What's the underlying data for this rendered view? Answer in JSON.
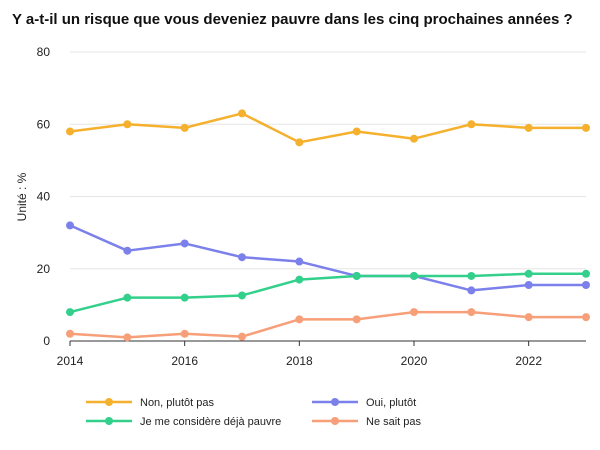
{
  "chart_data": {
    "type": "line",
    "title": "Y a-t-il un risque que vous deveniez pauvre dans les cinq prochaines années ?",
    "ylabel": "Unité : %",
    "xlabel": "",
    "x": [
      2014,
      2015,
      2016,
      2017,
      2018,
      2019,
      2020,
      2021,
      2022,
      2023
    ],
    "x_ticks": [
      2014,
      2016,
      2018,
      2020,
      2022
    ],
    "xlim": [
      2014,
      2023
    ],
    "ylim": [
      0,
      80
    ],
    "y_ticks": [
      0,
      20,
      40,
      60,
      80
    ],
    "grid": true,
    "legend_position": "bottom",
    "series": [
      {
        "name": "Non, plutôt pas",
        "color": "#f5b02e",
        "values": [
          58,
          60,
          59,
          63,
          55,
          58,
          56,
          60,
          59,
          59
        ]
      },
      {
        "name": "Oui, plutôt",
        "color": "#7b80ea",
        "values": [
          32,
          25,
          27,
          23.2,
          22,
          18,
          18,
          14,
          15.5,
          15.5
        ]
      },
      {
        "name": "Je me considère déjà pauvre",
        "color": "#33d08c",
        "values": [
          8,
          12,
          12,
          12.6,
          17,
          18,
          18,
          18,
          18.6,
          18.6
        ]
      },
      {
        "name": "Ne sait pas",
        "color": "#f79f78",
        "values": [
          2,
          1,
          2,
          1.2,
          6,
          6,
          8,
          8,
          6.6,
          6.6
        ]
      }
    ]
  }
}
